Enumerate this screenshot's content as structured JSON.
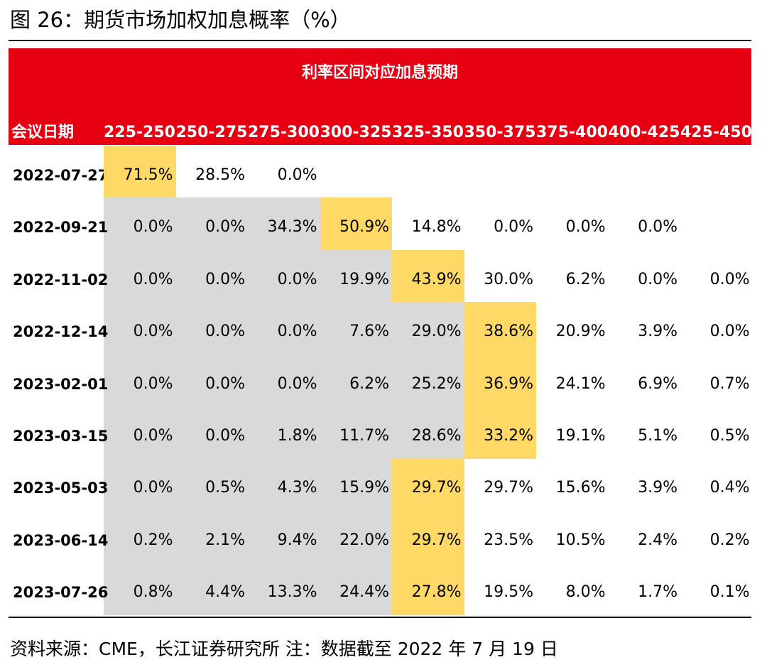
{
  "figure": {
    "title": "图 26：期货市场加权加息概率（%）",
    "source": "资料来源：CME，长江证券研究所    注：数据截至 2022 年 7 月 19 日"
  },
  "colors": {
    "header_red": "#e60012",
    "highlight_yellow": "#ffd966",
    "shade_grey": "#d9d9d9"
  },
  "chart_data": {
    "type": "table",
    "title": "利率区间对应加息预期",
    "row_header": "会议日期",
    "columns": [
      "225-250",
      "250-275",
      "275-300",
      "300-325",
      "325-350",
      "350-375",
      "375-400",
      "400-425",
      "425-450"
    ],
    "rows": [
      {
        "date": "2022-07-27",
        "values": [
          "71.5%",
          "28.5%",
          "0.0%",
          "",
          "",
          "",
          "",
          "",
          ""
        ],
        "highlight": 0,
        "grey_until": -1
      },
      {
        "date": "2022-09-21",
        "values": [
          "0.0%",
          "0.0%",
          "34.3%",
          "50.9%",
          "14.8%",
          "0.0%",
          "0.0%",
          "0.0%",
          ""
        ],
        "highlight": 3,
        "grey_until": 2
      },
      {
        "date": "2022-11-02",
        "values": [
          "0.0%",
          "0.0%",
          "0.0%",
          "19.9%",
          "43.9%",
          "30.0%",
          "6.2%",
          "0.0%",
          "0.0%"
        ],
        "highlight": 4,
        "grey_until": 3
      },
      {
        "date": "2022-12-14",
        "values": [
          "0.0%",
          "0.0%",
          "0.0%",
          "7.6%",
          "29.0%",
          "38.6%",
          "20.9%",
          "3.9%",
          "0.0%"
        ],
        "highlight": 5,
        "grey_until": 4
      },
      {
        "date": "2023-02-01",
        "values": [
          "0.0%",
          "0.0%",
          "0.0%",
          "6.2%",
          "25.2%",
          "36.9%",
          "24.1%",
          "6.9%",
          "0.7%"
        ],
        "highlight": 5,
        "grey_until": 4
      },
      {
        "date": "2023-03-15",
        "values": [
          "0.0%",
          "0.0%",
          "1.8%",
          "11.7%",
          "28.6%",
          "33.2%",
          "19.1%",
          "5.1%",
          "0.5%"
        ],
        "highlight": 5,
        "grey_until": 4
      },
      {
        "date": "2023-05-03",
        "values": [
          "0.0%",
          "0.5%",
          "4.3%",
          "15.9%",
          "29.7%",
          "29.7%",
          "15.6%",
          "3.9%",
          "0.4%"
        ],
        "highlight": 4,
        "grey_until": 3
      },
      {
        "date": "2023-06-14",
        "values": [
          "0.2%",
          "2.1%",
          "9.4%",
          "22.0%",
          "29.7%",
          "23.5%",
          "10.5%",
          "2.4%",
          "0.2%"
        ],
        "highlight": 4,
        "grey_until": 3
      },
      {
        "date": "2023-07-26",
        "values": [
          "0.8%",
          "4.4%",
          "13.3%",
          "24.4%",
          "27.8%",
          "19.5%",
          "8.0%",
          "1.7%",
          "0.1%"
        ],
        "highlight": 4,
        "grey_until": 3
      }
    ]
  }
}
